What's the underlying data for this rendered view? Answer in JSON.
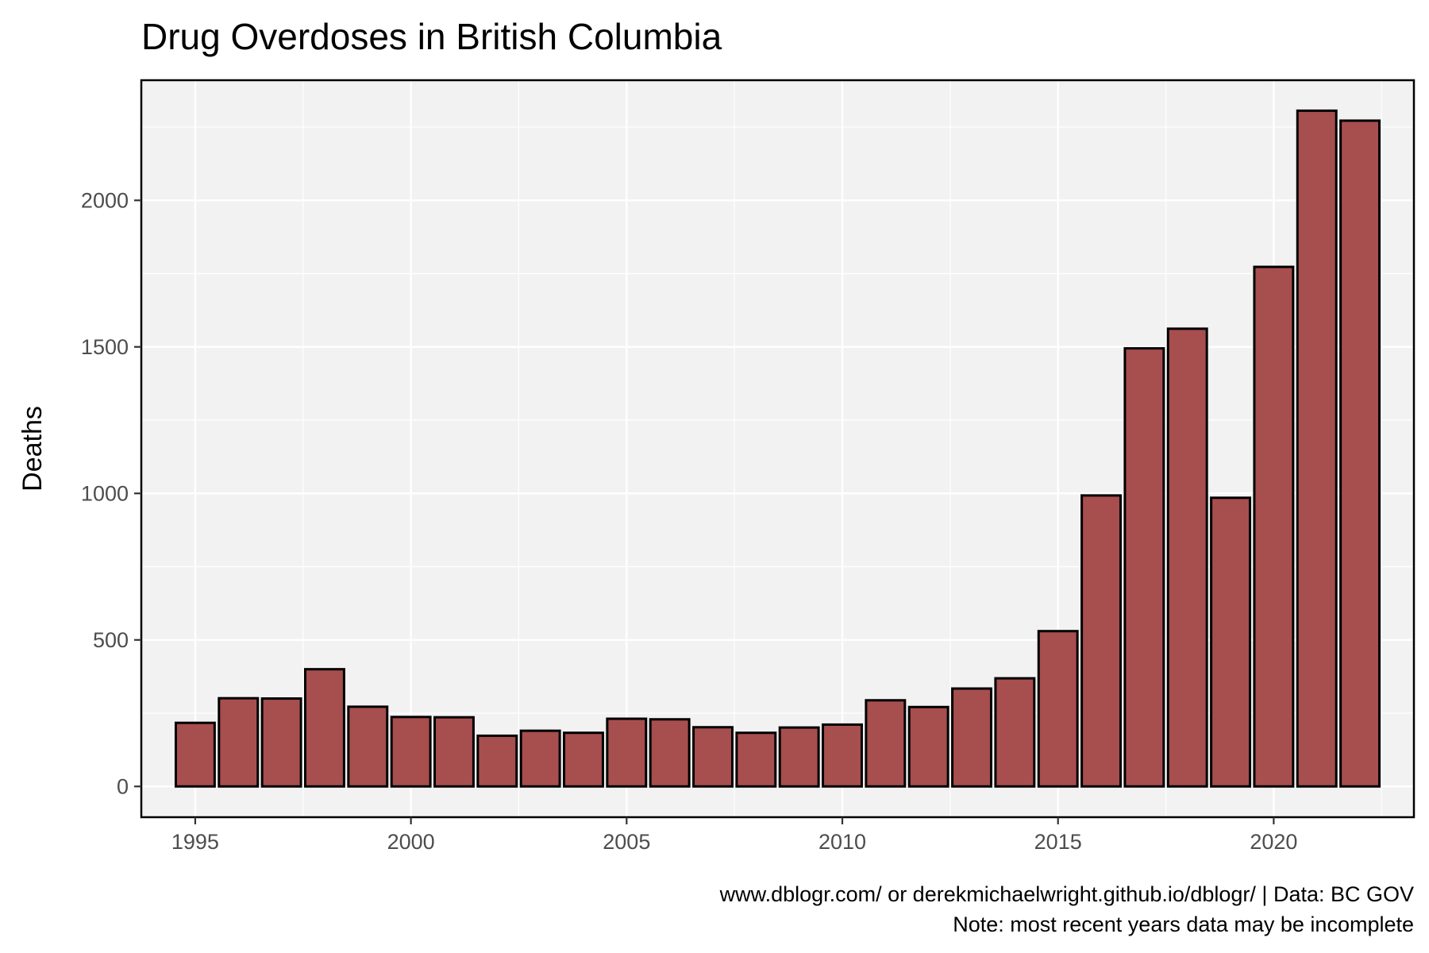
{
  "chart_data": {
    "type": "bar",
    "title": "Drug Overdoses in British Columbia",
    "xlabel": "",
    "ylabel": "Deaths",
    "x": [
      1995,
      1996,
      1997,
      1998,
      1999,
      2000,
      2001,
      2002,
      2003,
      2004,
      2005,
      2006,
      2007,
      2008,
      2009,
      2010,
      2011,
      2012,
      2013,
      2014,
      2015,
      2016,
      2017,
      2018,
      2019,
      2020,
      2021,
      2022
    ],
    "values": [
      217,
      301,
      300,
      400,
      272,
      237,
      236,
      173,
      190,
      183,
      231,
      229,
      202,
      183,
      201,
      211,
      294,
      271,
      334,
      369,
      530,
      993,
      1495,
      1562,
      985,
      1773,
      2306,
      2272
    ],
    "xlim": [
      1993.75,
      2023.25
    ],
    "ylim": [
      -105,
      2410
    ],
    "x_ticks": [
      "1995",
      "2000",
      "2005",
      "2010",
      "2015",
      "2020"
    ],
    "y_ticks": [
      "0",
      "500",
      "1000",
      "1500",
      "2000"
    ],
    "grid": true,
    "bar_fill": "#a24446",
    "bar_edge": "#000000",
    "panel_background": "#f2f2f2"
  },
  "caption": {
    "line1": "www.dblogr.com/ or derekmichaelwright.github.io/dblogr/ | Data: BC GOV",
    "line2": "Note: most recent years data may be incomplete"
  }
}
